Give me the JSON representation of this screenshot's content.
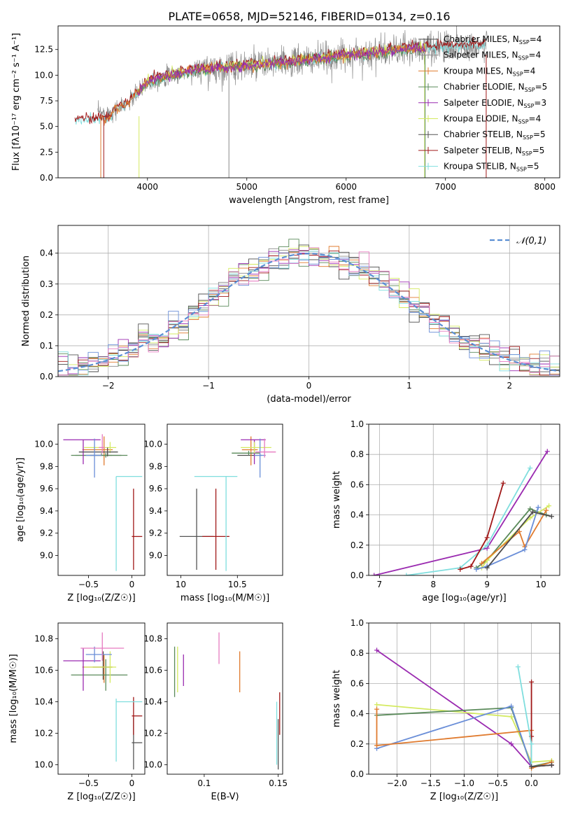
{
  "title": "PLATE=0658, MJD=52146, FIBERID=0134, z=0.16",
  "colors": {
    "Chabrier MILES": "#4b4b4b",
    "Salpeter MILES": "#8a8a8a",
    "Kroupa MILES": "#e07b2f",
    "Chabrier ELODIE": "#5a8a5a",
    "Salpeter ELODIE": "#9a2ab0",
    "Kroupa ELODIE": "#d4ea60",
    "Chabrier STELIB": "#555555",
    "Salpeter STELIB": "#a01818",
    "Kroupa STELIB": "#7fdede",
    "pink": "#e67ac0",
    "blue": "#6a8ed8",
    "gaussian": "#5b8fd4"
  },
  "chart_data": [
    {
      "id": "spectrum",
      "type": "line",
      "xlabel": "wavelength [Angstrom, rest frame]",
      "ylabel_tex": "Flux [fλ10⁻¹⁷ erg cm⁻² s⁻¹ A⁻¹]",
      "xlim": [
        3100,
        8150
      ],
      "ylim": [
        0,
        14.8
      ],
      "xticks": [
        4000,
        5000,
        6000,
        7000,
        8000
      ],
      "yticks": [
        0.0,
        2.5,
        5.0,
        7.5,
        10.0,
        12.5
      ],
      "legend": [
        {
          "name": "Chabrier MILES",
          "nssp": "4"
        },
        {
          "name": "Salpeter MILES",
          "nssp": "4"
        },
        {
          "name": "Kroupa MILES",
          "nssp": "4"
        },
        {
          "name": "Chabrier ELODIE",
          "nssp": "5"
        },
        {
          "name": "Salpeter ELODIE",
          "nssp": "3"
        },
        {
          "name": "Kroupa ELODIE",
          "nssp": "4"
        },
        {
          "name": "Chabrier STELIB",
          "nssp": "5"
        },
        {
          "name": "Salpeter STELIB",
          "nssp": "5"
        },
        {
          "name": "Kroupa STELIB",
          "nssp": "5"
        }
      ],
      "continuum": [
        [
          3200,
          6.2
        ],
        [
          3600,
          6.3
        ],
        [
          3800,
          7.2
        ],
        [
          4000,
          9.3
        ],
        [
          4200,
          9.9
        ],
        [
          4500,
          10.5
        ],
        [
          5000,
          10.9
        ],
        [
          5500,
          11.3
        ],
        [
          6000,
          11.9
        ],
        [
          6500,
          12.4
        ],
        [
          7000,
          12.8
        ],
        [
          7400,
          12.9
        ]
      ]
    },
    {
      "id": "residuals",
      "type": "histogram",
      "xlabel": "(data-model)/error",
      "ylabel": "Normed distribution",
      "xlim": [
        -2.5,
        2.5
      ],
      "ylim": [
        0,
        0.49
      ],
      "xticks": [
        -2,
        -1,
        0,
        1,
        2
      ],
      "yticks": [
        0.0,
        0.1,
        0.2,
        0.3,
        0.4
      ],
      "legend": "𝒩(0,1)",
      "grid": true
    },
    {
      "id": "age_vs_Z",
      "type": "errorbar",
      "xlabel": "Z [log₁₀(Z/Z☉)]",
      "ylabel": "age [log₁₀(age/yr)]",
      "xlim": [
        -0.85,
        0.15
      ],
      "ylim": [
        8.82,
        10.18
      ],
      "xticks": [
        -0.5,
        0.0
      ],
      "yticks": [
        9.0,
        9.2,
        9.4,
        9.6,
        9.8,
        10.0
      ],
      "points": [
        {
          "c": "Chabrier MILES",
          "x": -0.28,
          "xe": [
            0.2,
            0.16
          ],
          "y": 9.9,
          "ye": [
            0.0,
            0.02
          ]
        },
        {
          "c": "Salpeter MILES",
          "x": -0.35,
          "xe": [
            0.3,
            0.12
          ],
          "y": 9.9,
          "ye": [
            0.0,
            0.02
          ]
        },
        {
          "c": "Kroupa MILES",
          "x": -0.32,
          "xe": [
            0.25,
            0.1
          ],
          "y": 9.95,
          "ye": [
            0.14,
            0.12
          ]
        },
        {
          "c": "Chabrier ELODIE",
          "x": -0.3,
          "xe": [
            0.4,
            0.25
          ],
          "y": 9.9,
          "ye": [
            0.02,
            0.02
          ]
        },
        {
          "c": "Salpeter ELODIE",
          "x": -0.56,
          "xe": [
            0.23,
            0.2
          ],
          "y": 10.04,
          "ye": [
            0.22,
            0.0
          ]
        },
        {
          "c": "Kroupa ELODIE",
          "x": -0.25,
          "xe": [
            0.3,
            0.07
          ],
          "y": 9.97,
          "ye": [
            0.05,
            0.05
          ]
        },
        {
          "c": "Chabrier STELIB",
          "x": -0.28,
          "xe": [
            0.33,
            0.12
          ],
          "y": 9.93,
          "ye": [
            0.04,
            0.04
          ]
        },
        {
          "c": "Salpeter STELIB",
          "x": 0.02,
          "xe": [
            0.02,
            0.1
          ],
          "y": 9.17,
          "ye": [
            0.3,
            0.43
          ]
        },
        {
          "c": "Kroupa STELIB",
          "x": -0.18,
          "xe": [
            0.0,
            0.3
          ],
          "y": 9.71,
          "ye": [
            0.85,
            0.0
          ]
        },
        {
          "c": "blue",
          "x": -0.43,
          "xe": [
            0.1,
            0.08
          ],
          "y": 9.9,
          "ye": [
            0.2,
            0.15
          ]
        },
        {
          "c": "pink",
          "x": -0.34,
          "xe": [
            0.04,
            0.03
          ],
          "y": 9.97,
          "ye": [
            0.05,
            0.12
          ]
        }
      ]
    },
    {
      "id": "age_vs_mass",
      "type": "errorbar",
      "xlabel": "mass [log₁₀(M/M☉)]",
      "xlim": [
        9.88,
        10.9
      ],
      "ylim": [
        8.82,
        10.18
      ],
      "xticks": [
        10.0,
        10.5
      ],
      "yticks": [
        9.0,
        9.2,
        9.4,
        9.6,
        9.8,
        10.0
      ],
      "points": [
        {
          "c": "Chabrier MILES",
          "x": 10.62,
          "xe": [
            0.12,
            0.1
          ],
          "y": 9.9,
          "ye": [
            0.0,
            0.02
          ]
        },
        {
          "c": "Kroupa MILES",
          "x": 10.62,
          "xe": [
            0.08,
            0.06
          ],
          "y": 9.95,
          "ye": [
            0.14,
            0.12
          ]
        },
        {
          "c": "Chabrier ELODIE",
          "x": 10.6,
          "xe": [
            0.15,
            0.1
          ],
          "y": 9.92,
          "ye": [
            0.02,
            0.02
          ]
        },
        {
          "c": "Salpeter ELODIE",
          "x": 10.65,
          "xe": [
            0.12,
            0.1
          ],
          "y": 10.04,
          "ye": [
            0.22,
            0.0
          ]
        },
        {
          "c": "Kroupa ELODIE",
          "x": 10.65,
          "xe": [
            0.12,
            0.15
          ],
          "y": 9.97,
          "ye": [
            0.05,
            0.05
          ]
        },
        {
          "c": "Chabrier STELIB",
          "x": 10.14,
          "xe": [
            0.15,
            0.15
          ],
          "y": 9.17,
          "ye": [
            0.3,
            0.43
          ]
        },
        {
          "c": "Salpeter STELIB",
          "x": 10.31,
          "xe": [
            0.12,
            0.12
          ],
          "y": 9.17,
          "ye": [
            0.3,
            0.43
          ]
        },
        {
          "c": "Kroupa STELIB",
          "x": 10.4,
          "xe": [
            0.28,
            0.1
          ],
          "y": 9.71,
          "ye": [
            0.85,
            0.0
          ]
        },
        {
          "c": "blue",
          "x": 10.7,
          "xe": [
            0.05,
            0.05
          ],
          "y": 9.9,
          "ye": [
            0.2,
            0.15
          ]
        },
        {
          "c": "pink",
          "x": 10.74,
          "xe": [
            0.08,
            0.1
          ],
          "y": 9.93,
          "ye": [
            0.05,
            0.12
          ]
        }
      ]
    },
    {
      "id": "weight_vs_age",
      "type": "line",
      "xlabel": "age [log₁₀(age/yr)]",
      "ylabel": "mass weight",
      "xlim": [
        6.8,
        10.35
      ],
      "ylim": [
        0,
        1.0
      ],
      "xticks": [
        7,
        8,
        9,
        10
      ],
      "yticks": [
        0.0,
        0.2,
        0.4,
        0.6,
        0.8,
        1.0
      ],
      "grid": true,
      "series": [
        {
          "c": "Salpeter ELODIE",
          "x": [
            6.9,
            9.0,
            10.12
          ],
          "y": [
            0.0,
            0.18,
            0.82
          ]
        },
        {
          "c": "Kroupa STELIB",
          "x": [
            7.5,
            8.5,
            9.0,
            9.8
          ],
          "y": [
            0.0,
            0.05,
            0.2,
            0.71
          ]
        },
        {
          "c": "Salpeter STELIB",
          "x": [
            8.5,
            8.7,
            9.0,
            9.3
          ],
          "y": [
            0.04,
            0.06,
            0.25,
            0.61
          ]
        },
        {
          "c": "Chabrier ELODIE",
          "x": [
            8.8,
            9.0,
            9.8,
            10.1
          ],
          "y": [
            0.05,
            0.1,
            0.44,
            0.4
          ]
        },
        {
          "c": "Kroupa ELODIE",
          "x": [
            8.9,
            9.0,
            9.8,
            10.15
          ],
          "y": [
            0.05,
            0.1,
            0.38,
            0.46
          ]
        },
        {
          "c": "Kroupa MILES",
          "x": [
            8.9,
            9.6,
            9.7,
            10.1
          ],
          "y": [
            0.08,
            0.29,
            0.19,
            0.43
          ]
        },
        {
          "c": "blue",
          "x": [
            8.8,
            9.0,
            9.7,
            9.95
          ],
          "y": [
            0.04,
            0.06,
            0.17,
            0.45
          ]
        },
        {
          "c": "Chabrier MILES",
          "x": [
            9.0,
            9.85,
            10.2
          ],
          "y": [
            0.05,
            0.42,
            0.39
          ]
        }
      ]
    },
    {
      "id": "mass_vs_Z",
      "type": "errorbar",
      "xlabel": "Z [log₁₀(Z/Z☉)]",
      "ylabel": "mass [log₁₀(M/M☉)]",
      "xlim": [
        -0.85,
        0.15
      ],
      "ylim": [
        9.94,
        10.9
      ],
      "xticks": [
        -0.5,
        0.0
      ],
      "yticks": [
        10.0,
        10.2,
        10.4,
        10.6,
        10.8
      ],
      "points": [
        {
          "c": "Chabrier MILES",
          "x": -0.33,
          "xe": [
            0.12,
            0.1
          ],
          "y": 10.62,
          "ye": [
            0.08,
            0.1
          ]
        },
        {
          "c": "Kroupa MILES",
          "x": -0.32,
          "xe": [
            0.25,
            0.1
          ],
          "y": 10.62,
          "ye": [
            0.1,
            0.08
          ]
        },
        {
          "c": "Chabrier ELODIE",
          "x": -0.3,
          "xe": [
            0.4,
            0.25
          ],
          "y": 10.57,
          "ye": [
            0.1,
            0.1
          ]
        },
        {
          "c": "Salpeter ELODIE",
          "x": -0.56,
          "xe": [
            0.23,
            0.2
          ],
          "y": 10.66,
          "ye": [
            0.19,
            0.08
          ]
        },
        {
          "c": "Kroupa ELODIE",
          "x": -0.25,
          "xe": [
            0.3,
            0.07
          ],
          "y": 10.62,
          "ye": [
            0.1,
            0.1
          ]
        },
        {
          "c": "Chabrier STELIB",
          "x": 0.02,
          "xe": [
            0.02,
            0.1
          ],
          "y": 10.14,
          "ye": [
            0.17,
            0.16
          ]
        },
        {
          "c": "Salpeter STELIB",
          "x": 0.02,
          "xe": [
            0.02,
            0.1
          ],
          "y": 10.31,
          "ye": [
            0.12,
            0.12
          ]
        },
        {
          "c": "Kroupa STELIB",
          "x": -0.18,
          "xe": [
            0.0,
            0.3
          ],
          "y": 10.4,
          "ye": [
            0.38,
            0.02
          ]
        },
        {
          "c": "blue",
          "x": -0.43,
          "xe": [
            0.1,
            0.2
          ],
          "y": 10.7,
          "ye": [
            0.05,
            0.05
          ]
        },
        {
          "c": "pink",
          "x": -0.34,
          "xe": [
            0.25,
            0.25
          ],
          "y": 10.74,
          "ye": [
            0.08,
            0.1
          ]
        }
      ]
    },
    {
      "id": "mass_vs_ebv",
      "type": "errorbar",
      "xlabel": "E(B-V)",
      "xlim": [
        0.075,
        0.153
      ],
      "ylim": [
        9.94,
        10.9
      ],
      "xticks": [
        0.1,
        0.15
      ],
      "yticks": [
        10.0,
        10.2,
        10.4,
        10.6,
        10.8
      ],
      "points": [
        {
          "c": "Chabrier ELODIE",
          "x": 0.08,
          "y": 10.6,
          "ye": [
            0.17,
            0.15
          ]
        },
        {
          "c": "Kroupa ELODIE",
          "x": 0.082,
          "y": 10.6,
          "ye": [
            0.14,
            0.15
          ]
        },
        {
          "c": "Salpeter ELODIE",
          "x": 0.086,
          "y": 10.6,
          "ye": [
            0.1,
            0.1
          ]
        },
        {
          "c": "pink",
          "x": 0.11,
          "y": 10.74,
          "ye": [
            0.1,
            0.1
          ]
        },
        {
          "c": "Kroupa MILES",
          "x": 0.124,
          "y": 10.6,
          "ye": [
            0.14,
            0.12
          ]
        },
        {
          "c": "Kroupa STELIB",
          "x": 0.149,
          "y": 10.2,
          "ye": [
            0.2,
            0.2
          ]
        },
        {
          "c": "Chabrier STELIB",
          "x": 0.15,
          "y": 10.14,
          "ye": [
            0.17,
            0.15
          ]
        },
        {
          "c": "Salpeter STELIB",
          "x": 0.151,
          "y": 10.31,
          "ye": [
            0.12,
            0.15
          ]
        }
      ]
    },
    {
      "id": "weight_vs_Z",
      "type": "line",
      "xlabel": "Z [log₁₀(Z/Z☉)]",
      "ylabel": "mass weight",
      "xlim": [
        -2.42,
        0.42
      ],
      "ylim": [
        0,
        1.0
      ],
      "xticks": [
        -2.0,
        -1.5,
        -1.0,
        -0.5,
        0.0
      ],
      "xticklabels": [
        "−2.0",
        "−1.5",
        "−1.0",
        "−0.5",
        "0.0"
      ],
      "yticks": [
        0.0,
        0.2,
        0.4,
        0.6,
        0.8,
        1.0
      ],
      "grid": true,
      "series": [
        {
          "c": "Salpeter ELODIE",
          "x": [
            -2.3,
            -0.3,
            0.0
          ],
          "y": [
            0.82,
            0.2,
            0.05
          ]
        },
        {
          "c": "Kroupa ELODIE",
          "x": [
            -2.3,
            -0.3,
            0.0,
            0.3
          ],
          "y": [
            0.46,
            0.38,
            0.08,
            0.09
          ]
        },
        {
          "c": "Chabrier ELODIE",
          "x": [
            -2.3,
            -0.3,
            0.0,
            0.3
          ],
          "y": [
            0.39,
            0.44,
            0.05,
            0.08
          ]
        },
        {
          "c": "blue",
          "x": [
            -2.3,
            -0.3,
            0.0,
            0.3
          ],
          "y": [
            0.17,
            0.45,
            0.05,
            0.06
          ]
        },
        {
          "c": "Kroupa MILES",
          "x": [
            -2.3,
            -2.3,
            0.0,
            0.0,
            0.3
          ],
          "y": [
            0.43,
            0.19,
            0.29,
            0.04,
            0.08
          ]
        },
        {
          "c": "Salpeter STELIB",
          "x": [
            0.0,
            0.0,
            0.0,
            0.3
          ],
          "y": [
            0.61,
            0.25,
            0.05,
            0.06
          ]
        },
        {
          "c": "Kroupa STELIB",
          "x": [
            -0.2,
            0.0,
            0.0
          ],
          "y": [
            0.71,
            0.2,
            0.05
          ]
        },
        {
          "c": "Chabrier MILES",
          "x": [
            0.0,
            0.3
          ],
          "y": [
            0.05,
            0.06
          ]
        }
      ]
    }
  ]
}
